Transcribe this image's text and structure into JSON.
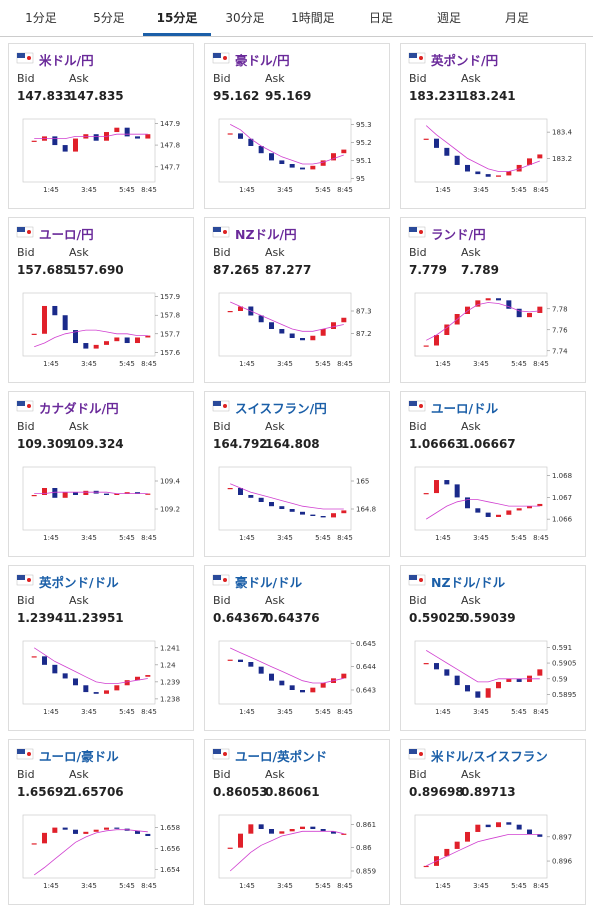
{
  "tabs": [
    "1分足",
    "5分足",
    "15分足",
    "30分足",
    "1時間足",
    "日足",
    "週足",
    "月足"
  ],
  "active_tab": 2,
  "bid_label": "Bid",
  "ask_label": "Ask",
  "time_labels": [
    "1:45",
    "3:45",
    "5:45",
    "8:45"
  ],
  "cards": [
    {
      "title": "米ドル/円",
      "title_color": "#6a2a9a",
      "bid": "147.833",
      "ask": "147.835",
      "ylim": [
        147.63,
        147.92
      ],
      "yticks": [
        147.7,
        147.8,
        147.9
      ],
      "closes": [
        147.82,
        147.84,
        147.8,
        147.77,
        147.83,
        147.85,
        147.82,
        147.86,
        147.88,
        147.84,
        147.83,
        147.85
      ],
      "ma": [
        147.83,
        147.83,
        147.83,
        147.83,
        147.84,
        147.84,
        147.84,
        147.84,
        147.85,
        147.85,
        147.85,
        147.85
      ]
    },
    {
      "title": "豪ドル/円",
      "title_color": "#6a2a9a",
      "bid": "95.162",
      "ask": "95.169",
      "ylim": [
        94.98,
        95.33
      ],
      "yticks": [
        95,
        95.1,
        95.2,
        95.3
      ],
      "closes": [
        95.25,
        95.22,
        95.18,
        95.14,
        95.1,
        95.08,
        95.06,
        95.05,
        95.07,
        95.1,
        95.14,
        95.16
      ],
      "ma": [
        95.3,
        95.27,
        95.22,
        95.18,
        95.15,
        95.12,
        95.1,
        95.08,
        95.08,
        95.09,
        95.11,
        95.13
      ]
    },
    {
      "title": "英ポンド/円",
      "title_color": "#6a2a9a",
      "bid": "183.231",
      "ask": "183.241",
      "ylim": [
        183.02,
        183.5
      ],
      "yticks": [
        183.2,
        183.4
      ],
      "closes": [
        183.35,
        183.28,
        183.22,
        183.15,
        183.1,
        183.08,
        183.06,
        183.07,
        183.1,
        183.15,
        183.2,
        183.23
      ],
      "ma": [
        183.45,
        183.38,
        183.32,
        183.26,
        183.2,
        183.16,
        183.12,
        183.1,
        183.1,
        183.12,
        183.15,
        183.18
      ]
    },
    {
      "title": "ユーロ/円",
      "title_color": "#6a2a9a",
      "bid": "157.685",
      "ask": "157.690",
      "ylim": [
        157.58,
        157.92
      ],
      "yticks": [
        157.6,
        157.7,
        157.8,
        157.9
      ],
      "closes": [
        157.7,
        157.85,
        157.8,
        157.72,
        157.65,
        157.62,
        157.64,
        157.66,
        157.68,
        157.65,
        157.68,
        157.69
      ],
      "ma": [
        157.63,
        157.65,
        157.68,
        157.7,
        157.71,
        157.72,
        157.72,
        157.71,
        157.7,
        157.7,
        157.69,
        157.69
      ]
    },
    {
      "title": "NZドル/円",
      "title_color": "#6a2a9a",
      "bid": "87.265",
      "ask": "87.277",
      "ylim": [
        87.1,
        87.38
      ],
      "yticks": [
        87.2,
        87.3
      ],
      "closes": [
        87.3,
        87.32,
        87.28,
        87.25,
        87.22,
        87.2,
        87.18,
        87.17,
        87.19,
        87.22,
        87.25,
        87.27
      ],
      "ma": [
        87.34,
        87.32,
        87.3,
        87.28,
        87.26,
        87.24,
        87.22,
        87.21,
        87.21,
        87.22,
        87.23,
        87.24
      ]
    },
    {
      "title": "ランド/円",
      "title_color": "#6a2a9a",
      "bid": "7.779",
      "ask": "7.789",
      "ylim": [
        7.735,
        7.795
      ],
      "yticks": [
        7.74,
        7.76,
        7.78
      ],
      "closes": [
        7.745,
        7.755,
        7.765,
        7.775,
        7.782,
        7.788,
        7.79,
        7.788,
        7.78,
        7.772,
        7.776,
        7.782
      ],
      "ma": [
        7.75,
        7.755,
        7.762,
        7.77,
        7.778,
        7.784,
        7.786,
        7.785,
        7.782,
        7.778,
        7.777,
        7.778
      ]
    },
    {
      "title": "カナダドル/円",
      "title_color": "#6a2a9a",
      "bid": "109.309",
      "ask": "109.324",
      "ylim": [
        109.05,
        109.5
      ],
      "yticks": [
        109.2,
        109.4
      ],
      "closes": [
        109.3,
        109.35,
        109.28,
        109.32,
        109.3,
        109.33,
        109.31,
        109.3,
        109.31,
        109.32,
        109.31,
        109.31
      ],
      "ma": [
        109.31,
        109.31,
        109.32,
        109.32,
        109.32,
        109.32,
        109.32,
        109.32,
        109.31,
        109.31,
        109.31,
        109.31
      ]
    },
    {
      "title": "スイスフラン/円",
      "title_color": "#1b5fa8",
      "bid": "164.792",
      "ask": "164.808",
      "ylim": [
        164.65,
        165.1
      ],
      "yticks": [
        164.8,
        165
      ],
      "closes": [
        164.95,
        164.9,
        164.88,
        164.85,
        164.82,
        164.8,
        164.78,
        164.76,
        164.75,
        164.74,
        164.77,
        164.79
      ],
      "ma": [
        164.98,
        164.95,
        164.92,
        164.9,
        164.88,
        164.86,
        164.84,
        164.82,
        164.81,
        164.8,
        164.8,
        164.8
      ]
    },
    {
      "title": "ユーロ/ドル",
      "title_color": "#1b5fa8",
      "bid": "1.06663",
      "ask": "1.06667",
      "ylim": [
        1.0655,
        1.0684
      ],
      "yticks": [
        1.066,
        1.067,
        1.068
      ],
      "closes": [
        1.0672,
        1.0678,
        1.0676,
        1.067,
        1.0665,
        1.0663,
        1.0661,
        1.0662,
        1.0664,
        1.0665,
        1.0666,
        1.0667
      ],
      "ma": [
        1.066,
        1.0663,
        1.0666,
        1.0668,
        1.0669,
        1.0669,
        1.0668,
        1.0667,
        1.0666,
        1.0666,
        1.0666,
        1.0666
      ]
    },
    {
      "title": "英ポンド/ドル",
      "title_color": "#1b5fa8",
      "bid": "1.23941",
      "ask": "1.23951",
      "ylim": [
        1.2377,
        1.2414
      ],
      "yticks": [
        1.238,
        1.239,
        1.24,
        1.241
      ],
      "closes": [
        1.2405,
        1.24,
        1.2395,
        1.2392,
        1.2388,
        1.2384,
        1.2383,
        1.2385,
        1.2388,
        1.2391,
        1.2393,
        1.2394
      ],
      "ma": [
        1.241,
        1.2406,
        1.2402,
        1.2399,
        1.2396,
        1.2393,
        1.239,
        1.2389,
        1.2389,
        1.239,
        1.2391,
        1.2392
      ]
    },
    {
      "title": "豪ドル/ドル",
      "title_color": "#1b5fa8",
      "bid": "0.64367",
      "ask": "0.64376",
      "ylim": [
        0.6424,
        0.6451
      ],
      "yticks": [
        0.643,
        0.644,
        0.645
      ],
      "closes": [
        0.6443,
        0.6442,
        0.644,
        0.6437,
        0.6434,
        0.6432,
        0.643,
        0.6429,
        0.6431,
        0.6433,
        0.6435,
        0.6437
      ],
      "ma": [
        0.6448,
        0.6446,
        0.6444,
        0.6442,
        0.644,
        0.6438,
        0.6436,
        0.6434,
        0.6433,
        0.6433,
        0.6434,
        0.6435
      ]
    },
    {
      "title": "NZドル/ドル",
      "title_color": "#1b5fa8",
      "bid": "0.59025",
      "ask": "0.59039",
      "ylim": [
        0.5892,
        0.5912
      ],
      "yticks": [
        0.5895,
        0.59,
        0.5905,
        0.591
      ],
      "closes": [
        0.5905,
        0.5903,
        0.5901,
        0.5898,
        0.5896,
        0.5894,
        0.5897,
        0.5899,
        0.59,
        0.5899,
        0.5901,
        0.5903
      ],
      "ma": [
        0.5909,
        0.5907,
        0.5905,
        0.5903,
        0.5901,
        0.5899,
        0.5899,
        0.59,
        0.59,
        0.59,
        0.59,
        0.59
      ]
    },
    {
      "title": "ユーロ/豪ドル",
      "title_color": "#1b5fa8",
      "bid": "1.65692",
      "ask": "1.65706",
      "ylim": [
        1.6532,
        1.6592
      ],
      "yticks": [
        1.654,
        1.656,
        1.658
      ],
      "closes": [
        1.6565,
        1.6575,
        1.658,
        1.6578,
        1.6574,
        1.6576,
        1.6578,
        1.658,
        1.6579,
        1.6577,
        1.6574,
        1.6572
      ],
      "ma": [
        1.6535,
        1.6542,
        1.655,
        1.6558,
        1.6566,
        1.6571,
        1.6575,
        1.6577,
        1.6578,
        1.6578,
        1.6577,
        1.6576
      ]
    },
    {
      "title": "ユーロ/英ポンド",
      "title_color": "#1b5fa8",
      "bid": "0.86053",
      "ask": "0.86061",
      "ylim": [
        0.8587,
        0.8614
      ],
      "yticks": [
        0.859,
        0.86,
        0.861
      ],
      "closes": [
        0.86,
        0.8606,
        0.861,
        0.8608,
        0.8606,
        0.8607,
        0.8608,
        0.8609,
        0.8608,
        0.8607,
        0.8606,
        0.8606
      ],
      "ma": [
        0.859,
        0.8594,
        0.8598,
        0.8601,
        0.8603,
        0.8605,
        0.8606,
        0.8607,
        0.8607,
        0.8607,
        0.8607,
        0.8606
      ]
    },
    {
      "title": "米ドル/スイスフラン",
      "title_color": "#1b5fa8",
      "bid": "0.89698",
      "ask": "0.89713",
      "ylim": [
        0.8953,
        0.8979
      ],
      "yticks": [
        0.896,
        0.897
      ],
      "closes": [
        0.8958,
        0.8962,
        0.8965,
        0.8968,
        0.8972,
        0.8975,
        0.8974,
        0.8976,
        0.8975,
        0.8973,
        0.8971,
        0.897
      ],
      "ma": [
        0.8958,
        0.896,
        0.8962,
        0.8964,
        0.8966,
        0.8968,
        0.8969,
        0.897,
        0.8971,
        0.8971,
        0.8971,
        0.8971
      ]
    }
  ]
}
